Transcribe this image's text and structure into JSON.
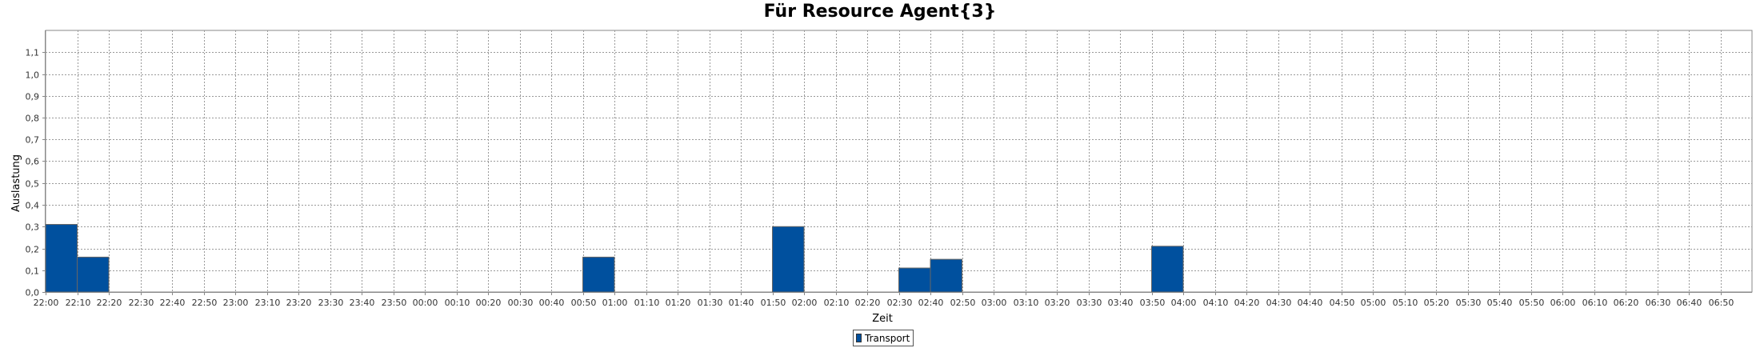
{
  "chart_data": {
    "type": "bar",
    "title": "Für Resource Agent{3}",
    "xlabel": "Zeit",
    "ylabel": "Auslastung",
    "ylim": [
      0,
      1.2
    ],
    "y_ticks": [
      "0,0",
      "0,1",
      "0,2",
      "0,3",
      "0,4",
      "0,5",
      "0,6",
      "0,7",
      "0,8",
      "0,9",
      "1,0",
      "1,1"
    ],
    "grid": true,
    "legend_position": "bottom-center",
    "categories": [
      "22:00",
      "22:10",
      "22:20",
      "22:30",
      "22:40",
      "22:50",
      "23:00",
      "23:10",
      "23:20",
      "23:30",
      "23:40",
      "23:50",
      "00:00",
      "00:10",
      "00:20",
      "00:30",
      "00:40",
      "00:50",
      "01:00",
      "01:10",
      "01:20",
      "01:30",
      "01:40",
      "01:50",
      "02:00",
      "02:10",
      "02:20",
      "02:30",
      "02:40",
      "02:50",
      "03:00",
      "03:10",
      "03:20",
      "03:30",
      "03:40",
      "03:50",
      "04:00",
      "04:10",
      "04:20",
      "04:30",
      "04:40",
      "04:50",
      "05:00",
      "05:10",
      "05:20",
      "05:30",
      "05:40",
      "05:50",
      "06:00",
      "06:10",
      "06:20",
      "06:30",
      "06:40",
      "06:50"
    ],
    "series": [
      {
        "name": "Transport",
        "color": "#00509e",
        "values": [
          0.31,
          0.16,
          0,
          0,
          0,
          0,
          0,
          0,
          0,
          0,
          0,
          0,
          0,
          0,
          0,
          0,
          0,
          0.16,
          0,
          0,
          0,
          0,
          0,
          0.3,
          0,
          0,
          0,
          0.11,
          0.15,
          0,
          0,
          0,
          0,
          0,
          0,
          0.21,
          0,
          0,
          0,
          0,
          0,
          0,
          0,
          0,
          0,
          0,
          0,
          0,
          0,
          0,
          0,
          0,
          0,
          0
        ]
      }
    ]
  }
}
